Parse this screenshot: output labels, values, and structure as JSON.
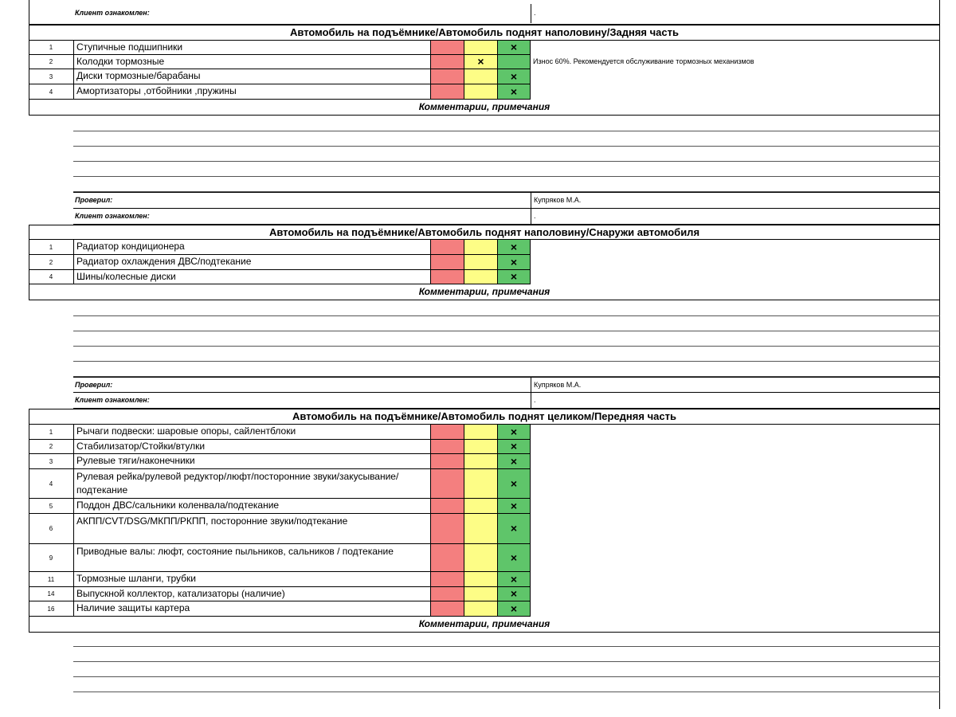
{
  "top": {
    "client_label": "Клиент ознакомлен:",
    "client_value": "."
  },
  "sections": [
    {
      "title": "Автомобиль на подъёмнике/Автомобиль поднят наполовину/Задняя часть",
      "items": [
        {
          "num": "1",
          "name": "Ступичные подшипники",
          "mark": "green",
          "note": ""
        },
        {
          "num": "2",
          "name": "Колодки тормозные",
          "mark": "yellow",
          "note": "Износ 60%. Рекомендуется обслуживание тормозных механизмов"
        },
        {
          "num": "3",
          "name": "Диски тормозные/барабаны",
          "mark": "green",
          "note": ""
        },
        {
          "num": "4",
          "name": "Амортизаторы ,отбойники ,пружины",
          "mark": "green",
          "note": ""
        }
      ],
      "comments_title": "Комментарии, примечания",
      "checked_label": "Проверил:",
      "checked_value": "Купряков М.А.",
      "client_label": "Клиент ознакомлен:",
      "client_value": "."
    },
    {
      "title": "Автомобиль на подъёмнике/Автомобиль поднят наполовину/Снаружи автомобиля",
      "items": [
        {
          "num": "1",
          "name": "Радиатор кондиционера",
          "mark": "green",
          "note": ""
        },
        {
          "num": "2",
          "name": "Радиатор охлаждения ДВС/подтекание",
          "mark": "green",
          "note": ""
        },
        {
          "num": "4",
          "name": "Шины/колесные диски",
          "mark": "green",
          "note": ""
        }
      ],
      "comments_title": "Комментарии, примечания",
      "checked_label": "Проверил:",
      "checked_value": "Купряков М.А.",
      "client_label": "Клиент ознакомлен:",
      "client_value": "."
    },
    {
      "title": "Автомобиль на подъёмнике/Автомобиль поднят целиком/Передняя часть",
      "items": [
        {
          "num": "1",
          "name": "Рычаги подвески: шаровые опоры, сайлентблоки",
          "mark": "green",
          "note": ""
        },
        {
          "num": "2",
          "name": "Стабилизатор/Стойки/втулки",
          "mark": "green",
          "note": ""
        },
        {
          "num": "3",
          "name": "Рулевые тяги/наконечники",
          "mark": "green",
          "note": ""
        },
        {
          "num": "4",
          "name": "Рулевая рейка/рулевой редуктор/люфт/посторонние звуки/закусывание/подтекание",
          "mark": "green",
          "note": ""
        },
        {
          "num": "5",
          "name": "Поддон ДВС/сальники коленвала/подтекание",
          "mark": "green",
          "note": ""
        },
        {
          "num": "6",
          "name": "АКПП/CVT/DSG/МКПП/РКПП, посторонние звуки/подтекание",
          "mark": "green",
          "note": ""
        },
        {
          "num": "9",
          "name": "Приводные валы: люфт, состояние пыльников, сальников / подтекание",
          "mark": "green",
          "note": ""
        },
        {
          "num": "11",
          "name": "Тормозные шланги, трубки",
          "mark": "green",
          "note": ""
        },
        {
          "num": "14",
          "name": "Выпускной коллектор, катализаторы (наличие)",
          "mark": "green",
          "note": ""
        },
        {
          "num": "16",
          "name": "Наличие защиты картера",
          "mark": "green",
          "note": ""
        }
      ],
      "comments_title": "Комментарии, примечания"
    }
  ],
  "mark_symbol": "×"
}
